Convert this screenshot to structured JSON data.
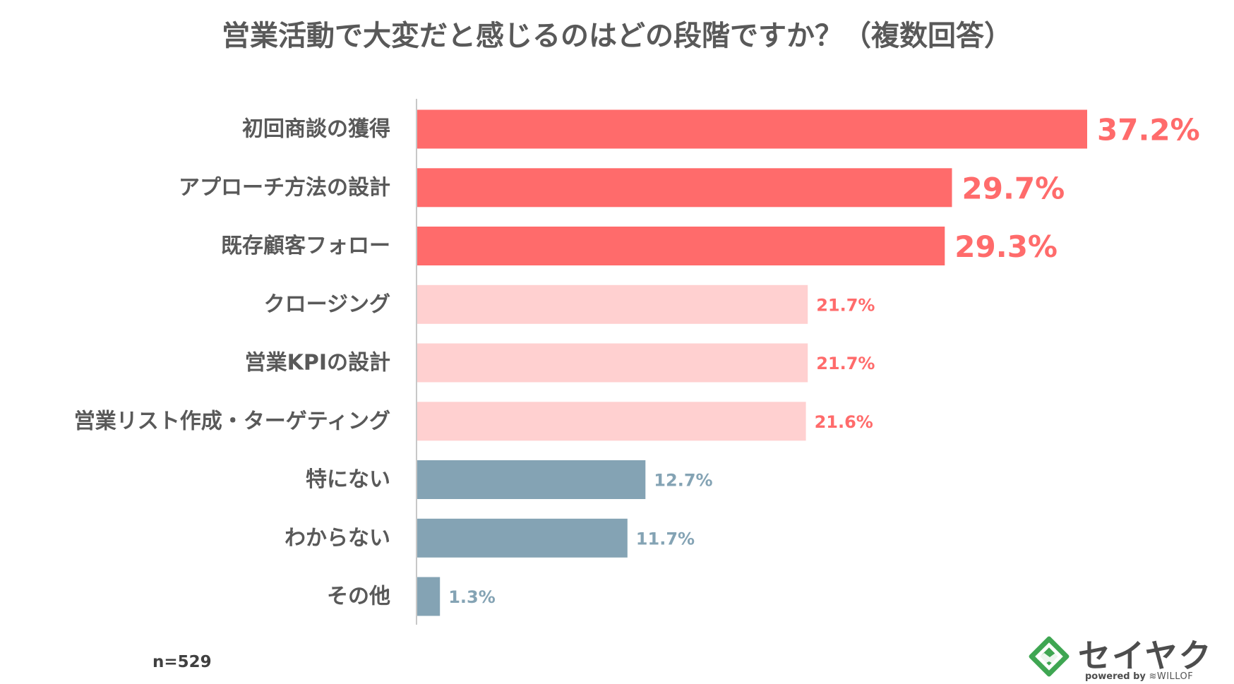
{
  "chart_data": {
    "type": "bar",
    "orientation": "horizontal",
    "title": "営業活動で大変だと感じるのはどの段階ですか？（複数回答）",
    "categories": [
      "初回商談の獲得",
      "アプローチ方法の設計",
      "既存顧客フォロー",
      "クロージング",
      "営業KPIの設計",
      "営業リスト作成・ターゲティング",
      "特にない",
      "わからない",
      "その他"
    ],
    "values": [
      37.2,
      29.7,
      29.3,
      21.7,
      21.7,
      21.6,
      12.7,
      11.7,
      1.3
    ],
    "value_labels": [
      "37.2%",
      "29.7%",
      "29.3%",
      "21.7%",
      "21.7%",
      "21.6%",
      "12.7%",
      "11.7%",
      "1.3%"
    ],
    "groups": [
      "top",
      "top",
      "top",
      "mid",
      "mid",
      "mid",
      "other",
      "other",
      "other"
    ],
    "xlim": [
      0,
      37.2
    ],
    "unit": "%",
    "xlabel": "",
    "ylabel": "",
    "grid": false,
    "legend": "none",
    "sample_size": "n=529"
  },
  "colors": {
    "top_bar": "#ff6b6b",
    "top_label": "#ff6b6b",
    "mid_bar": "#ffd0d0",
    "mid_label": "#ff6b6b",
    "other_bar": "#84a3b4",
    "other_label": "#84a3b4",
    "axis": "#c8c8c8",
    "title": "#595959",
    "logo_green": "#3fa652"
  },
  "logo": {
    "name": "セイヤク",
    "powered_prefix": "powered by",
    "powered_brand": "WILLOF",
    "icon": "handshake-icon"
  }
}
